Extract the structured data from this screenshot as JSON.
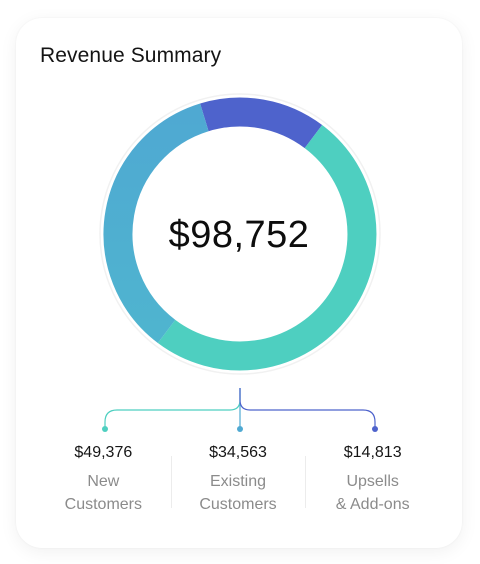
{
  "title": "Revenue Summary",
  "total": "$98,752",
  "colors": {
    "new_customers": "#4ecfc0",
    "existing_customers": "#4fa9d2",
    "upsells": "#4e63cc"
  },
  "chart_data": {
    "type": "pie",
    "title": "Revenue Summary",
    "center_label": "$98,752",
    "categories": [
      "New Customers",
      "Existing Customers",
      "Upsells & Add-ons"
    ],
    "values": [
      49376,
      34563,
      14813
    ]
  },
  "legend": [
    {
      "amount": "$49,376",
      "line1": "New",
      "line2": "Customers",
      "icon": "teal-dot"
    },
    {
      "amount": "$34,563",
      "line1": "Existing",
      "line2": "Customers",
      "icon": "blue-dot"
    },
    {
      "amount": "$14,813",
      "line1": "Upsells",
      "line2": "& Add-ons",
      "icon": "indigo-dot"
    }
  ]
}
